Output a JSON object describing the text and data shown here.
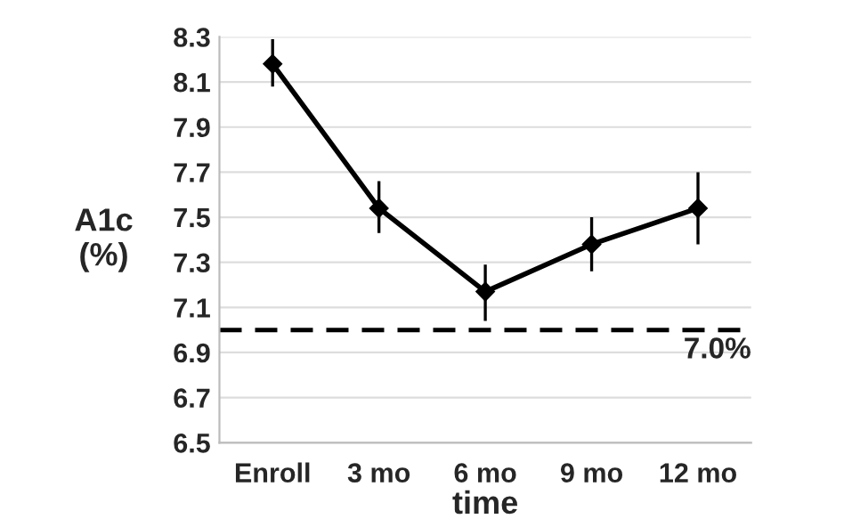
{
  "chart_data": {
    "type": "line",
    "xlabel": "time",
    "ylabel": "A1c\n(%)",
    "categories": [
      "Enroll",
      "3 mo",
      "6 mo",
      "9 mo",
      "12 mo"
    ],
    "series": [
      {
        "color": "#000000",
        "values": [
          8.18,
          7.54,
          7.17,
          7.38,
          7.54
        ],
        "errors": [
          [
            8.08,
            8.29
          ],
          [
            7.43,
            7.66
          ],
          [
            7.04,
            7.29
          ],
          [
            7.26,
            7.5
          ],
          [
            7.38,
            7.7
          ]
        ]
      }
    ],
    "ylim": [
      6.5,
      8.3
    ],
    "yticks": [
      6.5,
      6.7,
      6.9,
      7.1,
      7.3,
      7.5,
      7.7,
      7.9,
      8.1,
      8.3
    ],
    "ref_lines": [
      {
        "axis": "y",
        "value": 7.0,
        "label": "7.0%",
        "color": "#000000",
        "line_style": "dashed"
      }
    ],
    "grid": "y",
    "marker": "diamond",
    "line_style": "solid"
  }
}
